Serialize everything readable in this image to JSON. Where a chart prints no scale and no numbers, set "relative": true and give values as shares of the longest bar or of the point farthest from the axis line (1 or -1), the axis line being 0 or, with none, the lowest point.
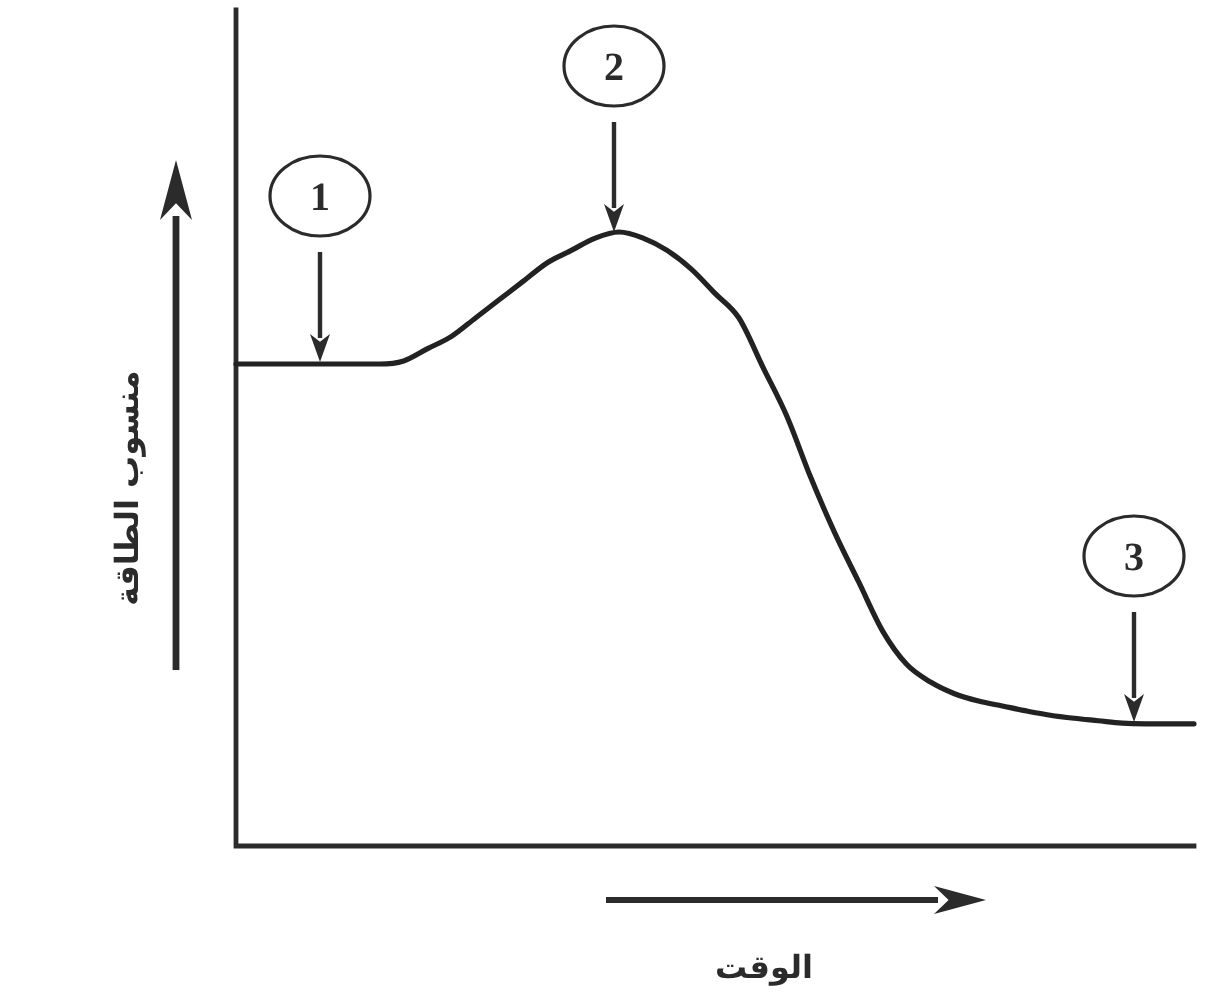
{
  "chart_data": {
    "type": "line",
    "xlabel": "الوقت",
    "ylabel": "منسوب الطاقة",
    "relative": true,
    "line_style": "solid",
    "color": "#222222",
    "categories": [
      null,
      null,
      null,
      null,
      null,
      null,
      null,
      null,
      null,
      null,
      null,
      null,
      null,
      null,
      null,
      null,
      null,
      null,
      null,
      null,
      null,
      null,
      null,
      null,
      null,
      null,
      null,
      null,
      null,
      null,
      null,
      null,
      null,
      null,
      null,
      null,
      null,
      null,
      null,
      null,
      null
    ],
    "values": [
      0.785,
      0.785,
      0.785,
      0.785,
      0.785,
      0.785,
      0.785,
      0.79,
      0.81,
      0.83,
      0.86,
      0.89,
      0.92,
      0.95,
      0.97,
      0.99,
      1,
      0.99,
      0.97,
      0.94,
      0.9,
      0.86,
      0.78,
      0.7,
      0.6,
      0.51,
      0.43,
      0.35,
      0.296,
      0.267,
      0.248,
      0.236,
      0.228,
      0.22,
      0.213,
      0.208,
      0.204,
      0.2,
      0.199,
      0.199,
      0.199
    ],
    "annotations": [
      "1",
      "2",
      "3"
    ]
  }
}
